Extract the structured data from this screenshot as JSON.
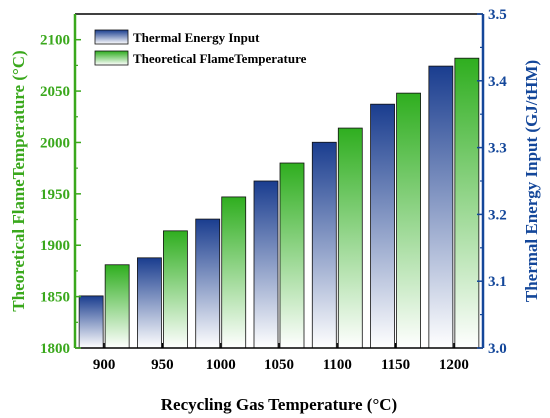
{
  "chart_data": {
    "type": "bar",
    "xlabel": "Recycling Gas Temperature (°C)",
    "ylabel_left": "Theoretical FlameTemperature (°C)",
    "ylabel_right": "Thermal Energy Input (GJ/tHM)",
    "categories": [
      "900",
      "950",
      "1000",
      "1050",
      "1100",
      "1150",
      "1200"
    ],
    "ylim_left": [
      1800,
      2125
    ],
    "yticks_left": [
      "1800",
      "1850",
      "1900",
      "1950",
      "2000",
      "2050",
      "2100"
    ],
    "ylim_right": [
      3.0,
      3.5
    ],
    "yticks_right": [
      "3.0",
      "3.1",
      "3.2",
      "3.3",
      "3.4",
      "3.5"
    ],
    "series": [
      {
        "name": "Thermal Energy Input",
        "axis": "right",
        "color": "#1a3d8f",
        "values": [
          3.078,
          3.135,
          3.193,
          3.25,
          3.308,
          3.365,
          3.422
        ]
      },
      {
        "name": "Theoretical FlameTemperature",
        "axis": "left",
        "color": "#2fae1f",
        "values": [
          1881,
          1914,
          1947,
          1980,
          2014,
          2048,
          2082
        ]
      }
    ],
    "legend": "top-left",
    "grid": false,
    "left_axis_color": "#3aa81c",
    "right_axis_color": "#14479a"
  }
}
